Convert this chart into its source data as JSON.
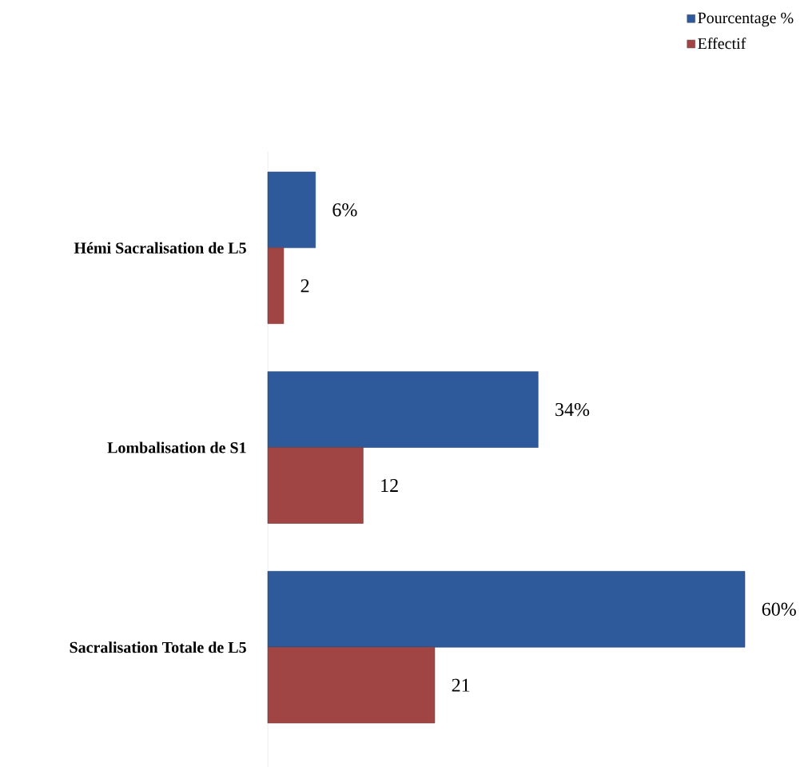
{
  "chart_data": {
    "type": "bar",
    "orientation": "horizontal",
    "categories": [
      "Hémi Sacralisation de L5",
      "Lombalisation de S1",
      "Sacralisation Totale de L5"
    ],
    "series": [
      {
        "name": "Pourcentage %",
        "color": "#2e5a9c",
        "values": [
          6,
          34,
          60
        ],
        "value_labels": [
          "6%",
          "34%",
          "60%"
        ]
      },
      {
        "name": "Effectif",
        "color": "#a04444",
        "values": [
          2,
          12,
          21
        ],
        "value_labels": [
          "2",
          "12",
          "21"
        ]
      }
    ],
    "xlim": [
      0,
      60
    ],
    "tick_labels": "y",
    "legend": "top right"
  }
}
